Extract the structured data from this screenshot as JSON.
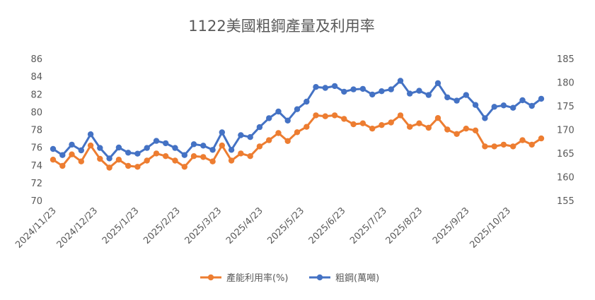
{
  "chart_data": {
    "type": "line",
    "title": "1122美國粗鋼產量及利用率",
    "x": [
      "2024/11/23",
      "2024/11/30",
      "2024/12/7",
      "2024/12/14",
      "2024/12/21",
      "2024/12/28",
      "2025/1/4",
      "2025/1/11",
      "2025/1/18",
      "2025/1/25",
      "2025/2/1",
      "2025/2/8",
      "2025/2/15",
      "2025/2/22",
      "2025/3/1",
      "2025/3/8",
      "2025/3/15",
      "2025/3/22",
      "2025/3/29",
      "2025/4/5",
      "2025/4/12",
      "2025/4/19",
      "2025/4/26",
      "2025/5/3",
      "2025/5/10",
      "2025/5/17",
      "2025/5/24",
      "2025/5/31",
      "2025/6/7",
      "2025/6/14",
      "2025/6/21",
      "2025/6/28",
      "2025/7/5",
      "2025/7/12",
      "2025/7/19",
      "2025/7/26",
      "2025/8/2",
      "2025/8/9",
      "2025/8/16",
      "2025/8/23",
      "2025/8/30",
      "2025/9/6",
      "2025/9/13",
      "2025/9/20",
      "2025/9/27",
      "2025/10/4",
      "2025/10/11",
      "2025/10/18",
      "2025/10/25",
      "2025/11/1",
      "2025/11/8",
      "2025/11/15",
      "2025/11/22"
    ],
    "x_tick_labels": [
      "2024/11/23",
      "2024/12/23",
      "2025/1/23",
      "2025/2/23",
      "2025/3/23",
      "2025/4/23",
      "2025/5/23",
      "2025/6/23",
      "2025/7/23",
      "2025/8/23",
      "2025/9/23",
      "2025/10/23"
    ],
    "left_axis": {
      "min": 70,
      "max": 86,
      "step": 2
    },
    "right_axis": {
      "min": 155,
      "max": 185,
      "step": 5
    },
    "grid": false,
    "legend_position": "bottom",
    "series": [
      {
        "name": "產能利用率(%)",
        "axis": "left",
        "color": "#ED7D31",
        "values": [
          74.6,
          73.9,
          75.2,
          74.4,
          76.2,
          74.7,
          73.7,
          74.6,
          73.9,
          73.8,
          74.5,
          75.3,
          75.0,
          74.5,
          73.8,
          75.0,
          74.9,
          74.4,
          76.2,
          74.5,
          75.3,
          75.0,
          76.1,
          76.8,
          77.6,
          76.7,
          77.7,
          78.3,
          79.6,
          79.5,
          79.6,
          79.2,
          78.6,
          78.7,
          78.1,
          78.5,
          78.8,
          79.6,
          78.3,
          78.7,
          78.2,
          79.3,
          78.0,
          77.5,
          78.1,
          77.9,
          76.1,
          76.1,
          76.3,
          76.1,
          76.8,
          76.3,
          77.0
        ]
      },
      {
        "name": "粗鋼(萬噸)",
        "axis": "right",
        "color": "#4472C4",
        "values": [
          165.9,
          164.6,
          166.8,
          165.6,
          169.0,
          166.1,
          163.9,
          166.2,
          165.1,
          164.9,
          166.1,
          167.6,
          167.1,
          166.1,
          164.6,
          166.9,
          166.6,
          165.7,
          169.4,
          165.7,
          168.8,
          168.4,
          170.5,
          172.4,
          173.8,
          171.9,
          174.3,
          175.9,
          179.0,
          178.8,
          179.2,
          178.0,
          178.5,
          178.6,
          177.4,
          178.1,
          178.5,
          180.3,
          177.6,
          178.2,
          177.3,
          179.8,
          176.8,
          176.1,
          177.3,
          175.2,
          172.4,
          174.8,
          175.1,
          174.6,
          176.2,
          175.0,
          176.5
        ]
      }
    ]
  }
}
